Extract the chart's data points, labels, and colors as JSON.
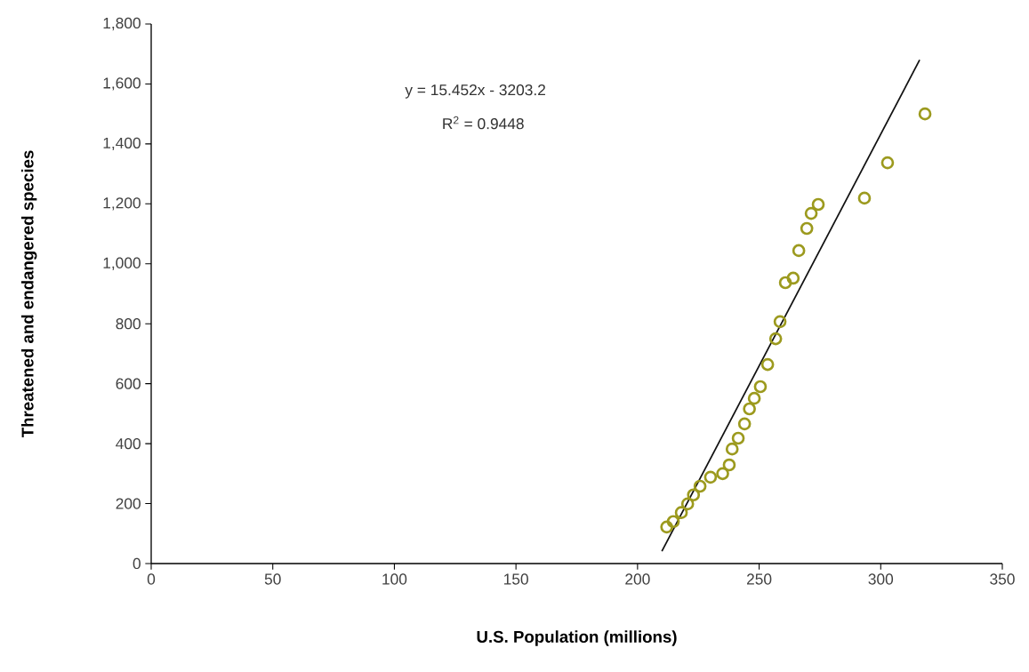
{
  "chart_data": {
    "type": "scatter",
    "xlabel": "U.S. Population (millions)",
    "ylabel": "Threatened and endangered species",
    "annotations": [
      "y = 15.452x - 3203.2",
      "R$^{2}$ = 0.9448"
    ],
    "xlim": [
      0,
      350
    ],
    "xticks": [
      0,
      50,
      100,
      150,
      200,
      250,
      300,
      350
    ],
    "ylim": [
      0,
      1800
    ],
    "yticks": [
      0,
      {
        "value": 200,
        "label": "200"
      },
      {
        "value": 400,
        "label": "400"
      },
      {
        "value": 600,
        "label": "600"
      },
      {
        "value": 800,
        "label": "800"
      },
      {
        "value": 1000,
        "label": "1,000"
      },
      {
        "value": 1200,
        "label": "1,200"
      },
      {
        "value": 1400,
        "label": "1,400"
      },
      {
        "value": 1600,
        "label": "1,600"
      },
      {
        "value": 1800,
        "label": "1,800"
      }
    ],
    "grid": false,
    "marker": "circle",
    "series": [
      {
        "color": "#9c9a1e",
        "x": [
          212,
          214.7,
          218,
          220.6,
          223,
          225.7,
          230,
          235,
          237.7,
          238.9,
          241.4,
          244,
          246,
          248,
          250.5,
          253.5,
          256.8,
          258.6,
          260.8,
          264,
          266.3,
          269.6,
          271.4,
          274.3,
          293.3,
          302.8,
          318.2
        ],
        "values": [
          122,
          140,
          170,
          199,
          229,
          258,
          288,
          300,
          329,
          382,
          418,
          466,
          516,
          551,
          590,
          664,
          750,
          807,
          937,
          952,
          1044,
          1118,
          1168,
          1198,
          1219,
          1337,
          1500
        ]
      },
      {
        "type": "line",
        "color": "#111111",
        "marker": "none",
        "line_style": "solid",
        "x": [
          210,
          316
        ],
        "values": [
          41,
          1680
        ]
      }
    ]
  }
}
